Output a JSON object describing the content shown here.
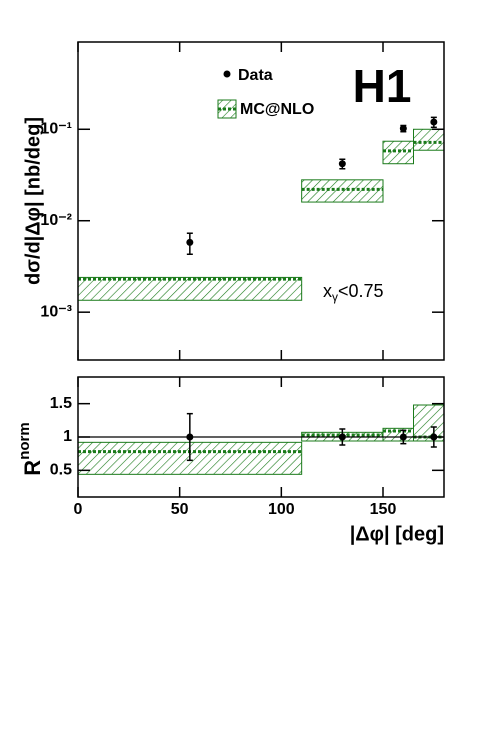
{
  "chart_data": [
    {
      "type": "step",
      "title": "H1",
      "ylabel": "dσ/d|Δφ| [nb/deg]",
      "log_y": true,
      "xlim": [
        0,
        180
      ],
      "xticks": [
        0,
        50,
        100,
        150
      ],
      "ylim": [
        0.0003,
        0.9
      ],
      "yticks": [
        {
          "value": 0.001,
          "label": "10⁻³"
        },
        {
          "value": 0.01,
          "label": "10⁻²"
        },
        {
          "value": 0.1,
          "label": "10⁻¹"
        }
      ],
      "annotation": {
        "text": "x",
        "sub": "γ",
        "rest": "<0.75"
      },
      "legend_position": "top",
      "series": [
        {
          "name": "Data",
          "color": "#000000",
          "x": [
            55,
            130,
            160,
            175
          ],
          "values": [
            0.0058,
            0.042,
            0.102,
            0.12
          ],
          "errors": [
            0.0015,
            0.005,
            0.008,
            0.015
          ]
        },
        {
          "name": "MC@NLO",
          "color": "#1a7a1a",
          "bins": [
            0,
            110,
            150,
            165,
            180
          ],
          "values": [
            0.0023,
            0.022,
            0.058,
            0.072
          ],
          "lower": [
            0.00135,
            0.016,
            0.042,
            0.059
          ],
          "upper": [
            0.0024,
            0.028,
            0.074,
            0.1
          ]
        }
      ]
    },
    {
      "type": "step",
      "xlabel": "|Δφ| [deg]",
      "ylabel": "R",
      "ylabel_sup": "norm",
      "log_y": false,
      "xlim": [
        0,
        180
      ],
      "xticks": [
        0,
        50,
        100,
        150
      ],
      "ylim": [
        0.1,
        1.9
      ],
      "yticks": [
        0.5,
        1,
        1.5
      ],
      "reference_line": 1,
      "series": [
        {
          "color": "#000000",
          "x": [
            55,
            130,
            160,
            175
          ],
          "values": [
            1,
            1,
            1,
            1
          ],
          "errors": [
            0.35,
            0.12,
            0.1,
            0.15
          ]
        },
        {
          "color": "#1a7a1a",
          "bins": [
            0,
            110,
            150,
            165,
            180
          ],
          "values": [
            0.78,
            1.03,
            1.09,
            1.0
          ],
          "lower": [
            0.44,
            0.94,
            0.94,
            0.94
          ],
          "upper": [
            0.92,
            1.07,
            1.13,
            1.48
          ]
        }
      ]
    }
  ]
}
